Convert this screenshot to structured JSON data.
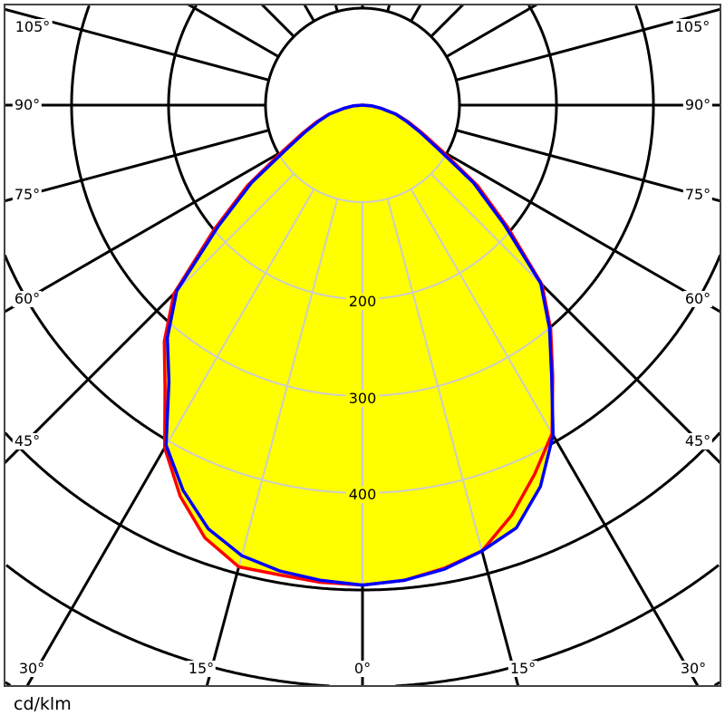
{
  "chart_data": {
    "type": "polar",
    "unit_label": "cd/klm",
    "radial_ticks": [
      200,
      300,
      400
    ],
    "radial_circles": [
      100,
      200,
      300,
      400,
      500,
      600,
      700
    ],
    "angle_step_deg": 15,
    "angle_labels": {
      "left": [
        "105°",
        "90°",
        "75°",
        "60°",
        "45°"
      ],
      "right": [
        "105°",
        "90°",
        "75°",
        "60°",
        "45°"
      ],
      "bottom": [
        "30°",
        "15°",
        "0°",
        "15°",
        "30°"
      ]
    },
    "angles": [
      -90,
      -85,
      -80,
      -75,
      -70,
      -65,
      -60,
      -55,
      -50,
      -45,
      -40,
      -35,
      -30,
      -25,
      -20,
      -15,
      -10,
      -5,
      0,
      5,
      10,
      15,
      20,
      25,
      30,
      35,
      40,
      45,
      50,
      55,
      60,
      65,
      70,
      75,
      80,
      85,
      90
    ],
    "series": [
      {
        "color": "#ff0000",
        "values": [
          0,
          10,
          20,
          36,
          50,
          68,
          95,
          145,
          200,
          275,
          318,
          355,
          408,
          445,
          475,
          493,
          492,
          494,
          495,
          492,
          485,
          476,
          450,
          420,
          391,
          342,
          302,
          262,
          195,
          145,
          95,
          68,
          50,
          36,
          20,
          10,
          0
        ]
      },
      {
        "color": "#0000ff",
        "values": [
          0,
          10,
          20,
          35,
          48,
          65,
          90,
          140,
          194,
          271,
          313,
          348,
          405,
          438,
          465,
          481,
          488,
          492,
          495,
          492,
          486,
          476,
          464,
          434,
          393,
          340,
          300,
          260,
          190,
          140,
          90,
          65,
          48,
          35,
          20,
          10,
          0
        ]
      }
    ],
    "fill_color": "#ffff00",
    "grid": true
  }
}
